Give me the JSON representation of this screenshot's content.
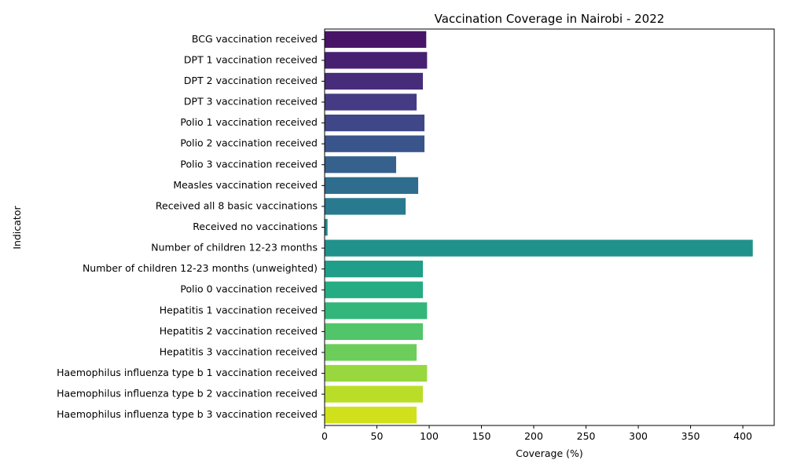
{
  "chart_data": {
    "type": "bar",
    "orientation": "horizontal",
    "title": "Vaccination Coverage in Nairobi - 2022",
    "xlabel": "Coverage (%)",
    "ylabel": "Indicator",
    "xlim": [
      0,
      430
    ],
    "xticks": [
      0,
      50,
      100,
      150,
      200,
      250,
      300,
      350,
      400
    ],
    "grid": false,
    "legend": "none",
    "colormap": "viridis",
    "categories": [
      "BCG vaccination received",
      "DPT 1 vaccination received",
      "DPT 2 vaccination received",
      "DPT 3 vaccination received",
      "Polio 1 vaccination received",
      "Polio 2 vaccination received",
      "Polio 3 vaccination received",
      "Measles vaccination received",
      "Received all 8 basic vaccinations",
      "Received no vaccinations",
      "Number of children 12-23 months",
      "Number of children 12-23 months (unweighted)",
      "Polio 0 vaccination received",
      "Hepatitis 1 vaccination received",
      "Hepatitis 2 vaccination received",
      "Hepatitis 3 vaccination received",
      "Haemophilus influenza type b 1 vaccination received",
      "Haemophilus influenza type b 2 vaccination received",
      "Haemophilus influenza type b 3 vaccination received"
    ],
    "values": [
      97.2,
      98.0,
      94.0,
      88.0,
      95.5,
      95.5,
      68.4,
      89.5,
      77.5,
      2.8,
      409.5,
      94.0,
      94.0,
      98.0,
      94.0,
      88.0,
      98.0,
      94.0,
      88.0
    ],
    "colors": [
      "#481467",
      "#482071",
      "#472c7a",
      "#443b84",
      "#3f4788",
      "#3a548c",
      "#36618d",
      "#2e6d8e",
      "#297a8e",
      "#24868e",
      "#21918c",
      "#1f9e89",
      "#25ac82",
      "#32b67a",
      "#51c569",
      "#6ccd5a",
      "#98d83e",
      "#bade28",
      "#d0e11c"
    ]
  }
}
